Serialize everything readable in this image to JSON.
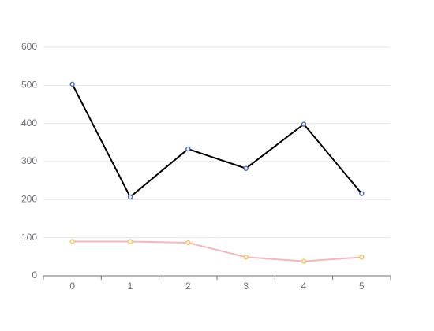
{
  "chart_data": {
    "type": "line",
    "categories": [
      "0",
      "1",
      "2",
      "3",
      "4",
      "5"
    ],
    "series": [
      {
        "color": "#000000",
        "marker_color": "#5470c6",
        "values": [
          503,
          207,
          333,
          282,
          398,
          216
        ]
      },
      {
        "color": "#f4b6b6",
        "marker_color": "#fac858",
        "values": [
          90,
          90,
          87,
          49,
          38,
          49
        ]
      }
    ],
    "ylim": [
      0,
      600
    ],
    "yticks": [
      0,
      100,
      200,
      300,
      400,
      500,
      600
    ],
    "grid": true
  }
}
